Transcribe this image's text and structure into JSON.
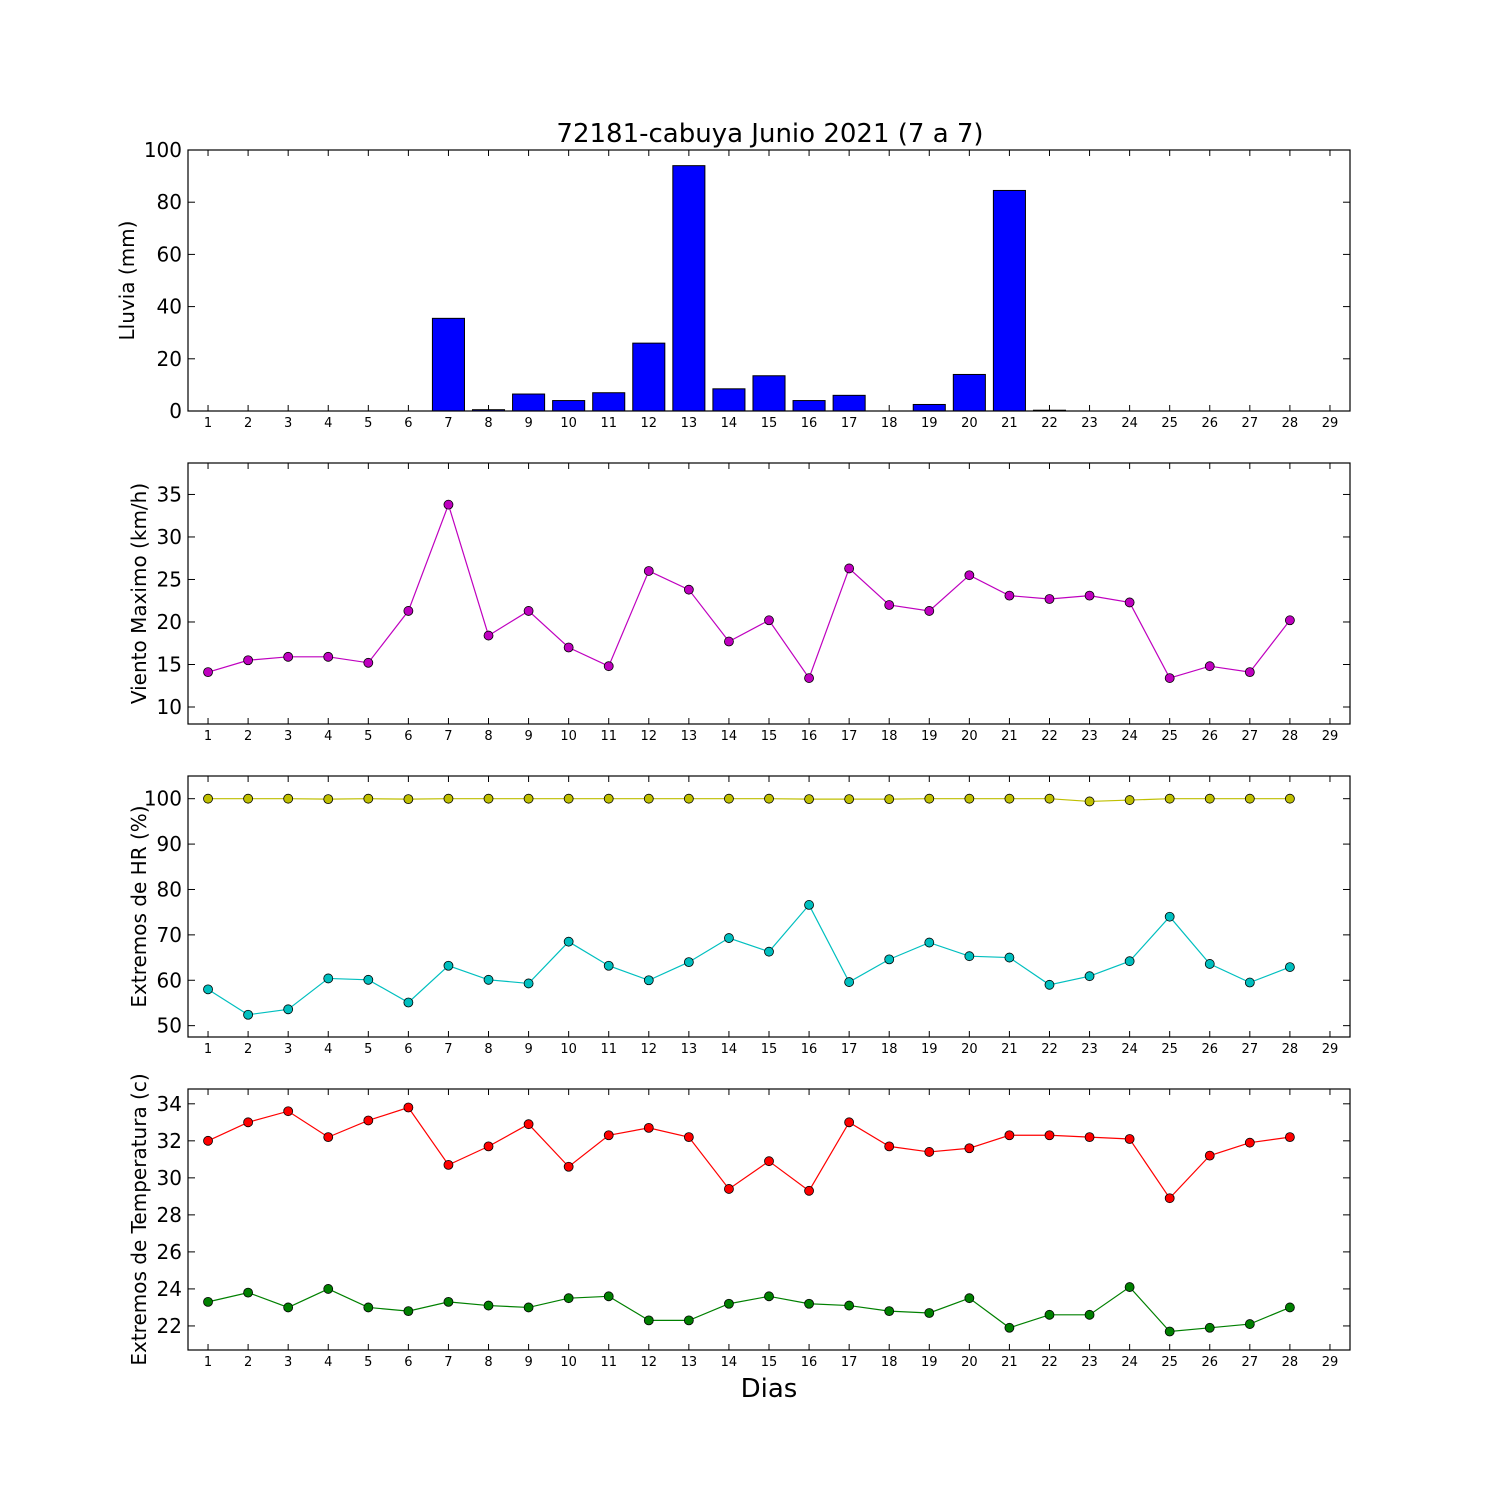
{
  "title": "72181-cabuya Junio 2021  (7 a 7)",
  "xlabel": "Dias",
  "colors": {
    "rain": "#0000ff",
    "wind": "#bf00bf",
    "hr_max": "#bfbf00",
    "hr_min": "#00bfbf",
    "t_max": "#ff0000",
    "t_min": "#008000"
  },
  "chart_data": [
    {
      "type": "bar",
      "ylabel": "Lluvia (mm)",
      "ylim": [
        0,
        100
      ],
      "yticks": [
        0,
        20,
        40,
        60,
        80,
        100
      ],
      "xlim": [
        0.5,
        29.5
      ],
      "xticks": [
        1,
        2,
        3,
        4,
        5,
        6,
        7,
        8,
        9,
        10,
        11,
        12,
        13,
        14,
        15,
        16,
        17,
        18,
        19,
        20,
        21,
        22,
        23,
        24,
        25,
        26,
        27,
        28,
        29
      ],
      "categories": [
        1,
        2,
        3,
        4,
        5,
        6,
        7,
        8,
        9,
        10,
        11,
        12,
        13,
        14,
        15,
        16,
        17,
        18,
        19,
        20,
        21,
        22,
        23,
        24,
        25,
        26,
        27,
        28
      ],
      "series": [
        {
          "color": "#0000ff",
          "values": [
            0,
            0,
            0,
            0,
            0,
            0,
            35.5,
            0.5,
            6.5,
            4,
            7,
            26,
            94,
            8.5,
            13.5,
            4,
            6,
            0,
            2.5,
            14,
            84.5,
            0.3,
            0,
            0,
            0,
            0,
            0,
            0
          ]
        }
      ]
    },
    {
      "type": "line",
      "ylabel": "Viento Maximo (km/h)",
      "ylim": [
        8,
        38.7
      ],
      "yticks": [
        10,
        15,
        20,
        25,
        30,
        35
      ],
      "xlim": [
        0.5,
        29.5
      ],
      "xticks": [
        1,
        2,
        3,
        4,
        5,
        6,
        7,
        8,
        9,
        10,
        11,
        12,
        13,
        14,
        15,
        16,
        17,
        18,
        19,
        20,
        21,
        22,
        23,
        24,
        25,
        26,
        27,
        28,
        29
      ],
      "x": [
        1,
        2,
        3,
        4,
        5,
        6,
        7,
        8,
        9,
        10,
        11,
        12,
        13,
        14,
        15,
        16,
        17,
        18,
        19,
        20,
        21,
        22,
        23,
        24,
        25,
        26,
        27,
        28
      ],
      "series": [
        {
          "color": "#bf00bf",
          "values": [
            14.1,
            15.5,
            15.9,
            15.9,
            15.2,
            21.3,
            33.8,
            18.4,
            21.3,
            17,
            14.8,
            26,
            23.8,
            17.7,
            20.2,
            13.4,
            26.3,
            22,
            21.3,
            25.5,
            23.1,
            22.7,
            23.1,
            22.3,
            13.4,
            14.8,
            14.1,
            20.2
          ]
        }
      ]
    },
    {
      "type": "line",
      "ylabel": "Extremos de HR (%)",
      "ylim": [
        47.5,
        105
      ],
      "yticks": [
        50,
        60,
        70,
        80,
        90,
        100
      ],
      "xlim": [
        0.5,
        29.5
      ],
      "xticks": [
        1,
        2,
        3,
        4,
        5,
        6,
        7,
        8,
        9,
        10,
        11,
        12,
        13,
        14,
        15,
        16,
        17,
        18,
        19,
        20,
        21,
        22,
        23,
        24,
        25,
        26,
        27,
        28,
        29
      ],
      "x": [
        1,
        2,
        3,
        4,
        5,
        6,
        7,
        8,
        9,
        10,
        11,
        12,
        13,
        14,
        15,
        16,
        17,
        18,
        19,
        20,
        21,
        22,
        23,
        24,
        25,
        26,
        27,
        28
      ],
      "series": [
        {
          "color": "#bfbf00",
          "values": [
            100,
            100,
            100,
            99.9,
            100,
            99.9,
            100,
            100,
            100,
            100,
            100,
            100,
            100,
            100,
            100,
            99.9,
            99.9,
            99.9,
            100,
            100,
            100,
            100,
            99.4,
            99.7,
            100,
            100,
            100,
            100
          ]
        },
        {
          "color": "#00bfbf",
          "values": [
            58,
            52.4,
            53.6,
            60.4,
            60.1,
            55.1,
            63.2,
            60.1,
            59.3,
            68.5,
            63.2,
            60,
            64,
            69.3,
            66.3,
            76.6,
            59.6,
            64.6,
            68.3,
            65.3,
            65,
            59,
            60.9,
            64.2,
            74,
            63.6,
            59.5,
            62.9
          ]
        }
      ]
    },
    {
      "type": "line",
      "ylabel": "Extremos de Temperatura (c)",
      "ylim": [
        20.7,
        34.8
      ],
      "yticks": [
        22,
        24,
        26,
        28,
        30,
        32,
        34
      ],
      "xlim": [
        0.5,
        29.5
      ],
      "xticks": [
        1,
        2,
        3,
        4,
        5,
        6,
        7,
        8,
        9,
        10,
        11,
        12,
        13,
        14,
        15,
        16,
        17,
        18,
        19,
        20,
        21,
        22,
        23,
        24,
        25,
        26,
        27,
        28,
        29
      ],
      "x": [
        1,
        2,
        3,
        4,
        5,
        6,
        7,
        8,
        9,
        10,
        11,
        12,
        13,
        14,
        15,
        16,
        17,
        18,
        19,
        20,
        21,
        22,
        23,
        24,
        25,
        26,
        27,
        28
      ],
      "series": [
        {
          "color": "#ff0000",
          "values": [
            32,
            33,
            33.6,
            32.2,
            33.1,
            33.8,
            30.7,
            31.7,
            32.9,
            30.6,
            32.3,
            32.7,
            32.2,
            29.4,
            30.9,
            29.3,
            33,
            31.7,
            31.4,
            31.6,
            32.3,
            32.3,
            32.2,
            32.1,
            28.9,
            31.2,
            31.9,
            32.2
          ]
        },
        {
          "color": "#008000",
          "values": [
            23.3,
            23.8,
            23,
            24,
            23,
            22.8,
            23.3,
            23.1,
            23,
            23.5,
            23.6,
            22.3,
            22.3,
            23.2,
            23.6,
            23.2,
            23.1,
            22.8,
            22.7,
            23.5,
            21.9,
            22.6,
            22.6,
            24.1,
            21.7,
            21.9,
            22.1,
            23
          ]
        }
      ]
    }
  ]
}
